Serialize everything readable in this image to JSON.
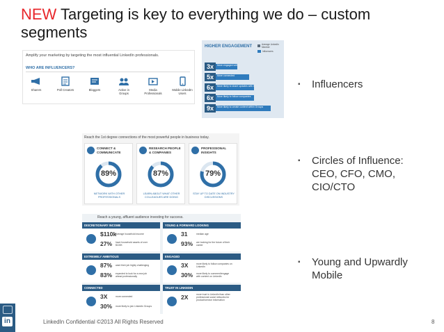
{
  "slide": {
    "title_accent": "NEW",
    "title_rest": " Targeting is key to everything we do – custom segments",
    "footer": "LinkedIn Confidential ©2013 All Rights Reserved",
    "page_number": "8",
    "sidebar_logo": "in"
  },
  "influencers_panel": {
    "intro": "Amplify your marketing by targeting the most influential LinkedIn professionals.",
    "header": "WHO ARE INFLUENCERS?",
    "items": [
      {
        "label": "Sharers",
        "icon": "megaphone-icon"
      },
      {
        "label": "Poll Creators",
        "icon": "poll-icon"
      },
      {
        "label": "Bloggers",
        "icon": "blog-icon"
      },
      {
        "label": "Active in Groups",
        "icon": "group-icon"
      },
      {
        "label": "Media Professionals",
        "icon": "media-icon"
      },
      {
        "label": "Mobile LinkedIn Users",
        "icon": "mobile-icon"
      }
    ]
  },
  "engagement_panel": {
    "title": "HIGHER ENGAGEMENT",
    "legend": [
      {
        "label": "Average LinkedIn Member",
        "color": "#5a6b7a"
      },
      {
        "label": "Influencers",
        "color": "#2f7bbd"
      }
    ],
    "bars": [
      {
        "mult": "3x",
        "text": "More engaged with LinkedIn Today",
        "fraction": 0.35
      },
      {
        "mult": "5x",
        "text": "More connected",
        "fraction": 0.55
      },
      {
        "mult": "6x",
        "text": "More likely to share updates with their network",
        "fraction": 0.62
      },
      {
        "mult": "6x",
        "text": "More likely to follow companies",
        "fraction": 0.62
      },
      {
        "mult": "9x",
        "text": "More likely to create content within Groups",
        "fraction": 0.9
      }
    ]
  },
  "circles_panel": {
    "intro": "Reach the 1st degree connections of the most powerful people in business today.",
    "cards": [
      {
        "title": "CONNECT & COMMUNICATE",
        "pct": "89%",
        "fraction": 0.89,
        "foot": "NETWORK WITH OTHER PROFESSIONALS",
        "icon": "chat-icon"
      },
      {
        "title": "RESEARCH PEOPLE & COMPANIES",
        "pct": "87%",
        "fraction": 0.87,
        "foot": "LEARN ABOUT WHAT OTHER COLLEAGUES ARE DOING",
        "icon": "magnifier-icon"
      },
      {
        "title": "PROFESSIONAL INSIGHTS",
        "pct": "79%",
        "fraction": 0.79,
        "foot": "STAY UP TO DATE ON INDUSTRY DISCUSSIONS",
        "icon": "lightbulb-icon"
      }
    ]
  },
  "young_panel": {
    "intro": "Reach a young, affluent audience investing for success.",
    "cells": [
      {
        "header": "DISCRETIONARY INCOME",
        "icon": "dollar-icon",
        "stats": [
          {
            "value": "$110k",
            "desc": "average household income"
          },
          {
            "value": "27%",
            "desc": "have household assets of over $100K"
          }
        ]
      },
      {
        "header": "YOUNG & FORWARD LOOKING",
        "icon": "binoculars-icon",
        "stats": [
          {
            "value": "31",
            "desc": "median age"
          },
          {
            "value": "93%",
            "desc": "are looking for the future of their career"
          }
        ]
      },
      {
        "header": "EXTREMELY AMBITIOUS",
        "icon": "chart-icon",
        "stats": [
          {
            "value": "87%",
            "desc": "want their job highly challenging"
          },
          {
            "value": "83%",
            "desc": "expected to look for a new job ahead professionally"
          }
        ]
      },
      {
        "header": "ENGAGED",
        "icon": "follow-icon",
        "stats": [
          {
            "value": "3X",
            "desc": "more likely to follow companies on LinkedIn"
          },
          {
            "value": "30%",
            "desc": "more likely to comment/engage with content on LinkedIn"
          }
        ]
      },
      {
        "header": "CONNECTED",
        "icon": "network-icon",
        "stats": [
          {
            "value": "3X",
            "desc": "more connected"
          },
          {
            "value": "30%",
            "desc": "more likely to join LinkedIn Groups"
          }
        ]
      },
      {
        "header": "TRUST IN LINKEDIN",
        "icon": "handshake-icon",
        "stats": [
          {
            "value": "2X",
            "desc": "more trust in LinkedIn than other professional social networks for product/service information"
          }
        ]
      }
    ]
  },
  "bullets": [
    "Influencers",
    "Circles of Influence: CEO, CFO, CMO, CIO/CTO",
    "Young and Upwardly Mobile"
  ],
  "colors": {
    "accent": "#e8262a",
    "brand": "#2b5b84",
    "link": "#2f6fa7"
  }
}
